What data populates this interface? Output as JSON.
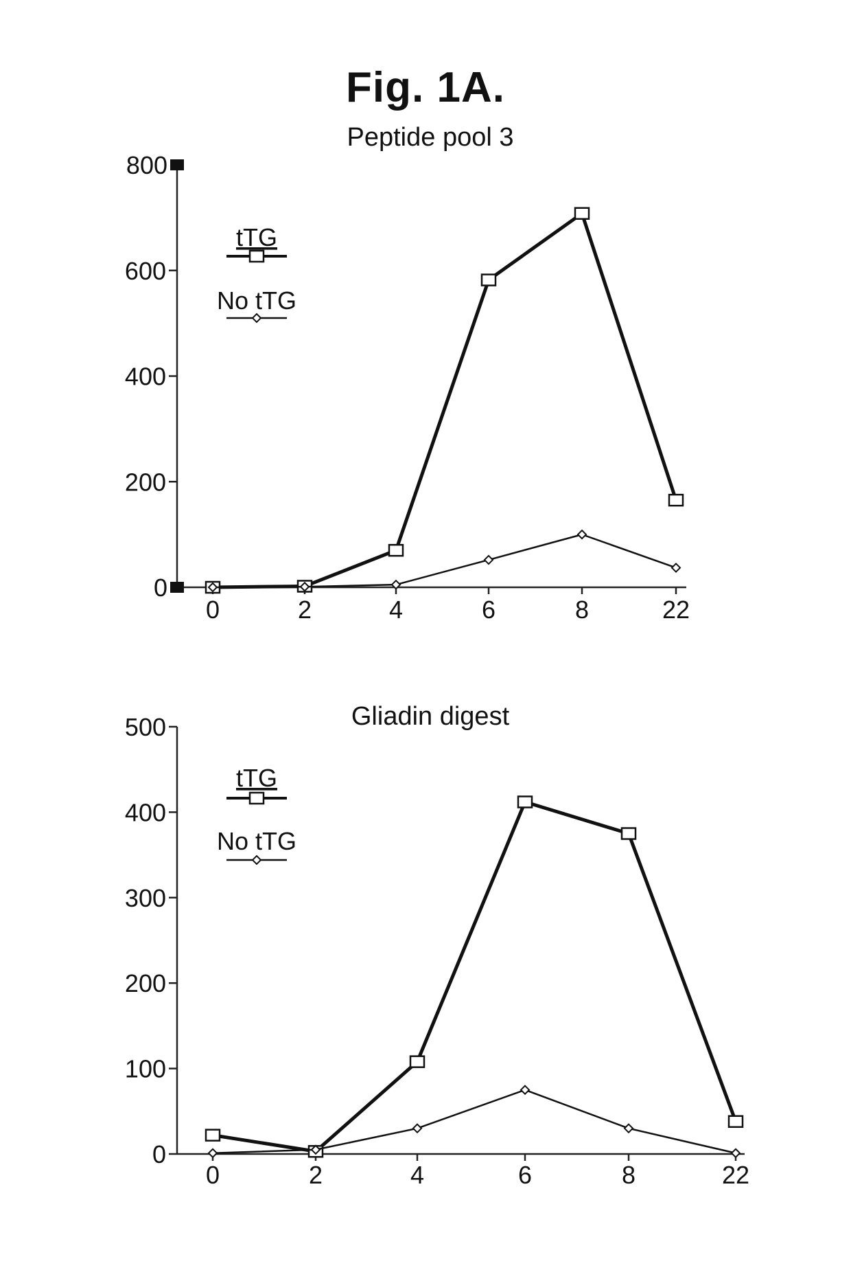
{
  "figure_title": "Fig. 1A.",
  "chart_data": [
    {
      "type": "line",
      "title": "Peptide pool 3",
      "xlabel": "",
      "ylabel": "",
      "categories": [
        "0",
        "2",
        "4",
        "6",
        "8",
        "22"
      ],
      "ylim": [
        0,
        800
      ],
      "yticks": [
        0,
        200,
        400,
        600,
        800
      ],
      "series": [
        {
          "name": "tTG",
          "marker": "square",
          "values": [
            0,
            2,
            70,
            582,
            708,
            165
          ]
        },
        {
          "name": "No tTG",
          "marker": "diamond",
          "values": [
            0,
            1,
            5,
            52,
            100,
            37
          ]
        }
      ],
      "legend": "top-left",
      "grid": false
    },
    {
      "type": "line",
      "title": "Gliadin digest",
      "xlabel": "",
      "ylabel": "",
      "categories": [
        "0",
        "2",
        "4",
        "6",
        "8",
        "22"
      ],
      "ylim": [
        0,
        500
      ],
      "yticks": [
        0,
        100,
        200,
        300,
        400,
        500
      ],
      "series": [
        {
          "name": "tTG",
          "marker": "square",
          "values": [
            22,
            3,
            108,
            412,
            375,
            38
          ]
        },
        {
          "name": "No tTG",
          "marker": "diamond",
          "values": [
            1,
            5,
            30,
            75,
            30,
            1
          ]
        }
      ],
      "legend": "top-left",
      "grid": false
    }
  ]
}
